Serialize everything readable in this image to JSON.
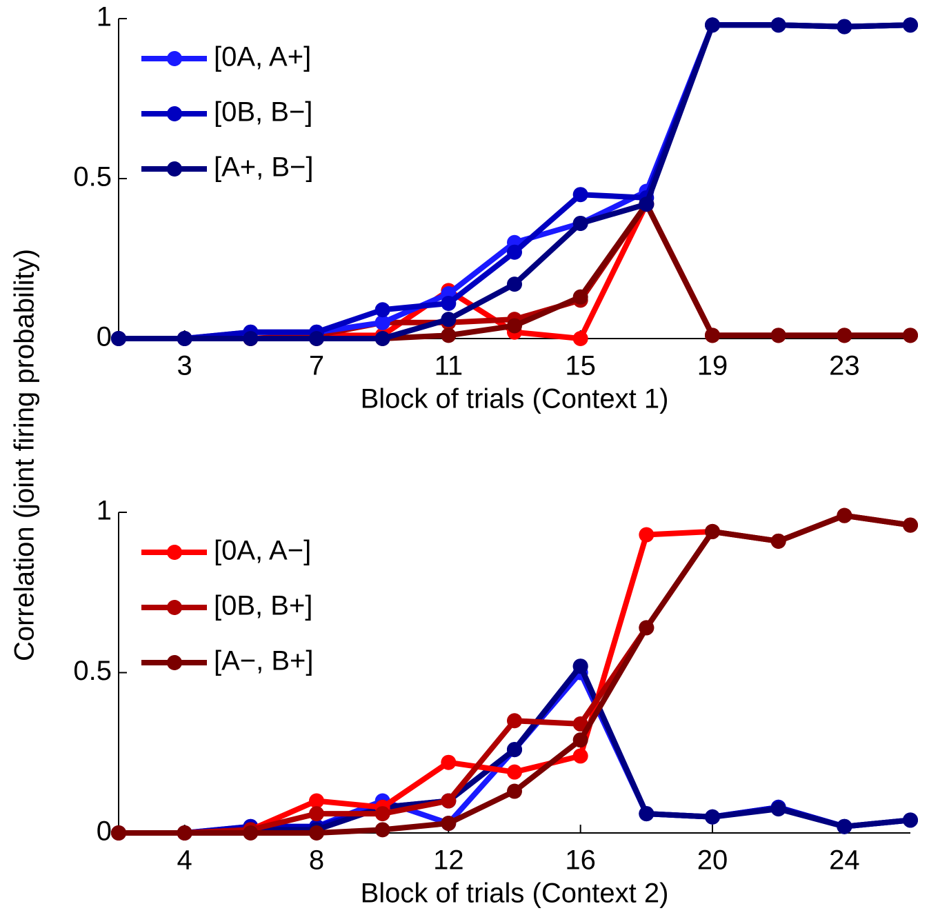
{
  "chart_data": [
    {
      "type": "line",
      "ylabel": "Correlation (joint firing probability)",
      "xlabel": "Block of trials (Context 1)",
      "x": [
        1,
        3,
        5,
        7,
        9,
        11,
        13,
        15,
        17,
        19,
        21,
        23,
        25
      ],
      "xlim": [
        1,
        25
      ],
      "xticks": [
        3,
        7,
        11,
        15,
        19,
        23
      ],
      "ylim": [
        0,
        1
      ],
      "yticks": [
        0,
        0.5,
        1
      ],
      "legend": "upper left",
      "series": [
        {
          "color": "#ff0000",
          "values": [
            0,
            0,
            0,
            0.01,
            0.01,
            0.15,
            0.02,
            0,
            0.42,
            0.01,
            0.01,
            0.01,
            0.01
          ]
        },
        {
          "color": "#b00000",
          "values": [
            0,
            0,
            0,
            0.01,
            0.05,
            0.05,
            0.06,
            0.12,
            0.42,
            0.01,
            0.01,
            0.01,
            0.01
          ]
        },
        {
          "color": "#7a0000",
          "values": [
            0,
            0,
            0,
            0,
            0,
            0.01,
            0.04,
            0.13,
            0.42,
            0.01,
            0.01,
            0.01,
            0.01
          ]
        },
        {
          "name": "[0A, A+]",
          "color": "#1a1aff",
          "values": [
            0,
            0,
            0.02,
            0.02,
            0.05,
            0.14,
            0.3,
            0.36,
            0.46,
            0.98,
            0.98,
            0.975,
            0.98
          ]
        },
        {
          "name": "[0B, B−]",
          "color": "#0000c0",
          "values": [
            0,
            0,
            0.02,
            0.02,
            0.09,
            0.11,
            0.27,
            0.45,
            0.44,
            0.98,
            0.98,
            0.975,
            0.98
          ]
        },
        {
          "name": "[A+, B−]",
          "color": "#000080",
          "values": [
            0,
            0,
            0,
            0,
            0,
            0.06,
            0.17,
            0.36,
            0.42,
            0.98,
            0.98,
            0.975,
            0.98
          ]
        }
      ]
    },
    {
      "type": "line",
      "xlabel": "Block of trials (Context 2)",
      "x": [
        2,
        4,
        6,
        8,
        10,
        12,
        14,
        16,
        18,
        20,
        22,
        24,
        26
      ],
      "xlim": [
        2,
        26
      ],
      "xticks": [
        4,
        8,
        12,
        16,
        20,
        24
      ],
      "ylim": [
        0,
        1
      ],
      "yticks": [
        0,
        0.5,
        1
      ],
      "legend": "upper left",
      "series": [
        {
          "color": "#1a1aff",
          "values": [
            0,
            0,
            0.02,
            0.02,
            0.1,
            0.03,
            0.26,
            0.5,
            0.06,
            0.05,
            0.08,
            0.02,
            0.04
          ]
        },
        {
          "color": "#0000c0",
          "values": [
            0,
            0,
            0.02,
            0.02,
            0.08,
            0.1,
            0.26,
            0.52,
            0.06,
            0.05,
            0.08,
            0.02,
            0.04
          ]
        },
        {
          "color": "#000080",
          "values": [
            0,
            0,
            0.01,
            0.01,
            0.08,
            0.1,
            0.26,
            0.52,
            0.06,
            0.05,
            0.075,
            0.02,
            0.04
          ]
        },
        {
          "name": "[0A, A−]",
          "color": "#ff0000",
          "values": [
            0,
            0,
            0.01,
            0.1,
            0.08,
            0.22,
            0.19,
            0.24,
            0.93,
            0.94,
            0.91,
            0.99,
            0.96
          ]
        },
        {
          "name": "[0B, B+]",
          "color": "#b00000",
          "values": [
            0,
            0,
            0.01,
            0.06,
            0.06,
            0.1,
            0.35,
            0.34,
            0.64,
            0.94,
            0.91,
            0.99,
            0.96
          ]
        },
        {
          "name": "[A−, B+]",
          "color": "#7a0000",
          "values": [
            0,
            0,
            0,
            0,
            0.01,
            0.03,
            0.13,
            0.29,
            0.64,
            0.94,
            0.91,
            0.99,
            0.96
          ]
        }
      ]
    }
  ]
}
